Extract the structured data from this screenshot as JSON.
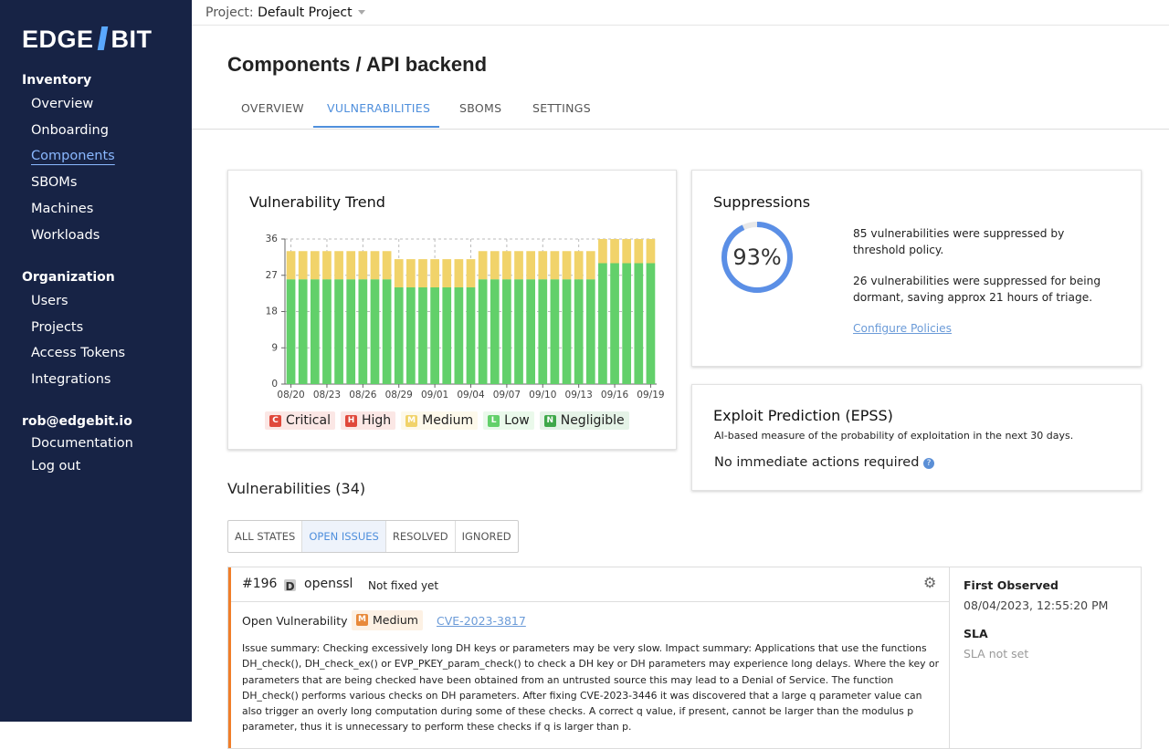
{
  "sidebar": {
    "logo_left": "EDGE",
    "logo_right": "BIT",
    "sections": [
      {
        "title": "Inventory",
        "items": [
          "Overview",
          "Onboarding",
          "Components",
          "SBOMs",
          "Machines",
          "Workloads"
        ]
      },
      {
        "title": "Organization",
        "items": [
          "Users",
          "Projects",
          "Access Tokens",
          "Integrations"
        ]
      },
      {
        "title": "rob@edgebit.io",
        "items": [
          "Documentation",
          "Log out"
        ]
      }
    ]
  },
  "topbar": {
    "label": "Project:",
    "project": "Default Project"
  },
  "header": {
    "title": "Components / API backend",
    "tabs": [
      "OVERVIEW",
      "VULNERABILITIES",
      "SBOMS",
      "SETTINGS"
    ]
  },
  "chart_data": {
    "type": "stacked-bar",
    "title": "Vulnerability Trend",
    "categories": [
      "08/20",
      null,
      null,
      "08/23",
      null,
      null,
      "08/26",
      null,
      null,
      "08/29",
      null,
      null,
      "09/01",
      null,
      null,
      "09/04",
      null,
      null,
      "09/07",
      null,
      null,
      "09/10",
      null,
      null,
      "09/13",
      null,
      null,
      "09/16",
      null,
      null,
      "09/19"
    ],
    "series": [
      {
        "name": "Critical",
        "badge": "C",
        "color": "#e0483b",
        "values": [
          0,
          0,
          0,
          0,
          0,
          0,
          0,
          0,
          0,
          0,
          0,
          0,
          0,
          0,
          0,
          0,
          0,
          0,
          0,
          0,
          0,
          0,
          0,
          0,
          0,
          0,
          0,
          0,
          0,
          0,
          0
        ]
      },
      {
        "name": "High",
        "badge": "H",
        "color": "#e0483b",
        "values": [
          0,
          0,
          0,
          0,
          0,
          0,
          0,
          0,
          0,
          0,
          0,
          0,
          0,
          0,
          0,
          0,
          0,
          0,
          0,
          0,
          0,
          0,
          0,
          0,
          0,
          0,
          0,
          0,
          0,
          0,
          0
        ]
      },
      {
        "name": "Medium",
        "badge": "M",
        "color": "#f1d36a",
        "values": [
          7,
          7,
          7,
          7,
          7,
          7,
          7,
          7,
          7,
          7,
          7,
          7,
          7,
          7,
          7,
          7,
          7,
          7,
          7,
          7,
          7,
          7,
          7,
          7,
          7,
          7,
          6,
          6,
          6,
          6,
          6
        ]
      },
      {
        "name": "Low",
        "badge": "L",
        "color": "#62d06a",
        "values": [
          26,
          26,
          26,
          26,
          26,
          26,
          26,
          26,
          26,
          24,
          24,
          24,
          24,
          24,
          24,
          24,
          26,
          26,
          26,
          26,
          26,
          26,
          26,
          26,
          26,
          26,
          30,
          30,
          30,
          30,
          30
        ]
      },
      {
        "name": "Negligible",
        "badge": "N",
        "color": "#3fa84a",
        "values": [
          0,
          0,
          0,
          0,
          0,
          0,
          0,
          0,
          0,
          0,
          0,
          0,
          0,
          0,
          0,
          0,
          0,
          0,
          0,
          0,
          0,
          0,
          0,
          0,
          0,
          0,
          0,
          0,
          0,
          0,
          0
        ]
      }
    ],
    "ylim": [
      0,
      36
    ],
    "yticks": [
      0,
      9,
      18,
      27,
      36
    ],
    "grid": true
  },
  "suppressions": {
    "title": "Suppressions",
    "percent": 93,
    "percent_label": "93%",
    "lines": [
      "85 vulnerabilities were suppressed by threshold policy.",
      "26 vulnerabilities were suppressed for being dormant, saving approx 21 hours of triage."
    ],
    "link": "Configure Policies"
  },
  "epss": {
    "title": "Exploit Prediction (EPSS)",
    "description": "AI-based measure of the probability of exploitation in the next 30 days.",
    "status": "No immediate actions required"
  },
  "vulnerabilities": {
    "heading": "Vulnerabilities (34)",
    "filters": [
      "ALL STATES",
      "OPEN ISSUES",
      "RESOLVED",
      "IGNORED"
    ],
    "issue": {
      "id": "#196",
      "type_badge": "D",
      "package": "openssl",
      "fix_status": "Not fixed yet",
      "state": "Open Vulnerability",
      "severity_badge": "M",
      "severity": "Medium",
      "cve": "CVE-2023-3817",
      "description": "Issue summary: Checking excessively long DH keys or parameters may be very slow. Impact summary: Applications that use the functions DH_check(), DH_check_ex() or EVP_PKEY_param_check() to check a DH key or DH parameters may experience long delays. Where the key or parameters that are being checked have been obtained from an untrusted source this may lead to a Denial of Service. The function DH_check() performs various checks on DH parameters. After fixing CVE-2023-3446 it was discovered that a large q parameter value can also trigger an overly long computation during some of these checks. A correct q value, if present, cannot be larger than the modulus p parameter, thus it is unnecessary to perform these checks if q is larger than p.",
      "first_observed_label": "First Observed",
      "first_observed": "08/04/2023, 12:55:20 PM",
      "sla_label": "SLA",
      "sla": "SLA not set"
    }
  }
}
